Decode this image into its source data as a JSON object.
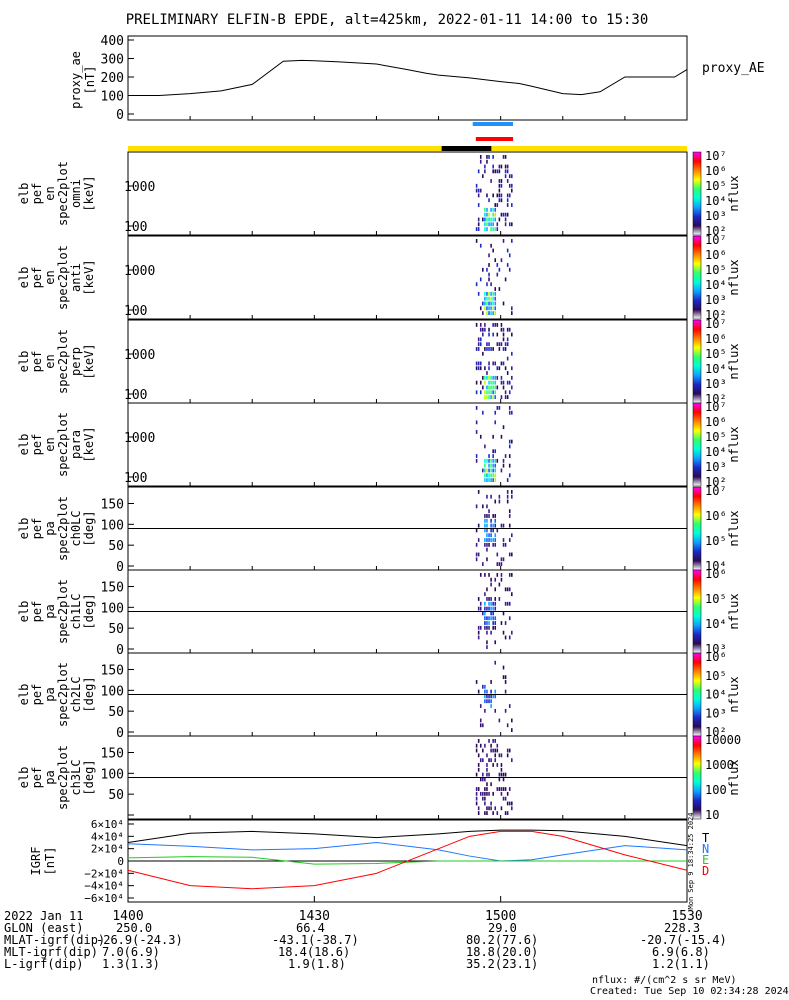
{
  "title": "PRELIMINARY ELFIN-B EPDE, alt=425km, 2022-01-11 14:00 to 15:30",
  "colors": {
    "north_blue": "#1f77ff",
    "east_green": "#22cc22",
    "down_red": "#ff0000",
    "bar_yellow": "#ffe000",
    "bar_black": "#000000",
    "marker_blue": "#1e90ff",
    "marker_red": "#ff0000"
  },
  "chart_data": [
    {
      "type": "line",
      "id": "proxy_ae",
      "ylabel": [
        "proxy_ae",
        "[nT]"
      ],
      "legend": "proxy_AE",
      "ylim": [
        0,
        400
      ],
      "yticks": [
        "400",
        "300",
        "200",
        "100",
        "0"
      ],
      "x_minutes": [
        0,
        5,
        10,
        15,
        20,
        25,
        28,
        30,
        34,
        40,
        45,
        48,
        50,
        55,
        60,
        63,
        65,
        70,
        73,
        76,
        80,
        85,
        88,
        90
      ],
      "values": [
        100,
        100,
        110,
        125,
        160,
        285,
        290,
        288,
        282,
        270,
        240,
        220,
        210,
        195,
        175,
        165,
        150,
        110,
        105,
        120,
        200,
        200,
        200,
        240
      ]
    },
    {
      "type": "heatmap",
      "id": "spec_omni",
      "ylabel": [
        "elb",
        "pef",
        "en",
        "spec2plot",
        "omni",
        "[keV]"
      ],
      "yticks": [
        "1000",
        "100"
      ],
      "ylog": true,
      "zlabel": "nflux",
      "zticks": [
        "10⁷",
        "10⁶",
        "10⁵",
        "10⁴",
        "10³",
        "10²"
      ],
      "active_window_minutes": [
        56,
        62
      ]
    },
    {
      "type": "heatmap",
      "id": "spec_anti",
      "ylabel": [
        "elb",
        "pef",
        "en",
        "spec2plot",
        "anti",
        "[keV]"
      ],
      "yticks": [
        "1000",
        "100"
      ],
      "ylog": true,
      "zlabel": "nflux",
      "zticks": [
        "10⁷",
        "10⁶",
        "10⁵",
        "10⁴",
        "10³",
        "10²"
      ],
      "active_window_minutes": [
        56,
        62
      ]
    },
    {
      "type": "heatmap",
      "id": "spec_perp",
      "ylabel": [
        "elb",
        "pef",
        "en",
        "spec2plot",
        "perp",
        "[keV]"
      ],
      "yticks": [
        "1000",
        "100"
      ],
      "ylog": true,
      "zlabel": "nflux",
      "zticks": [
        "10⁷",
        "10⁶",
        "10⁵",
        "10⁴",
        "10³",
        "10²"
      ],
      "active_window_minutes": [
        56,
        62
      ]
    },
    {
      "type": "heatmap",
      "id": "spec_para",
      "ylabel": [
        "elb",
        "pef",
        "en",
        "spec2plot",
        "para",
        "[keV]"
      ],
      "yticks": [
        "1000",
        "100"
      ],
      "ylog": true,
      "zlabel": "nflux",
      "zticks": [
        "10⁷",
        "10⁶",
        "10⁵",
        "10⁴",
        "10³",
        "10²"
      ],
      "active_window_minutes": [
        56,
        62
      ]
    },
    {
      "type": "heatmap",
      "id": "pa_ch0",
      "ylabel": [
        "elb",
        "pef",
        "pa",
        "spec2plot",
        "ch0LC",
        "[deg]"
      ],
      "yticks": [
        "150",
        "100",
        "50",
        "0"
      ],
      "ylim": [
        0,
        180
      ],
      "zlabel": "nflux",
      "zticks": [
        "10⁷",
        "10⁶",
        "10⁵",
        "10⁴"
      ],
      "active_window_minutes": [
        56,
        62
      ]
    },
    {
      "type": "heatmap",
      "id": "pa_ch1",
      "ylabel": [
        "elb",
        "pef",
        "pa",
        "spec2plot",
        "ch1LC",
        "[deg]"
      ],
      "yticks": [
        "150",
        "100",
        "50",
        "0"
      ],
      "ylim": [
        0,
        180
      ],
      "zlabel": "nflux",
      "zticks": [
        "10⁶",
        "10⁵",
        "10⁴",
        "10³"
      ],
      "active_window_minutes": [
        56,
        62
      ]
    },
    {
      "type": "heatmap",
      "id": "pa_ch2",
      "ylabel": [
        "elb",
        "pef",
        "pa",
        "spec2plot",
        "ch2LC",
        "[deg]"
      ],
      "yticks": [
        "150",
        "100",
        "50",
        "0"
      ],
      "ylim": [
        0,
        180
      ],
      "zlabel": "nflux",
      "zticks": [
        "10⁶",
        "10⁵",
        "10⁴",
        "10³",
        "10²"
      ],
      "active_window_minutes": [
        56,
        62
      ]
    },
    {
      "type": "heatmap",
      "id": "pa_ch3",
      "ylabel": [
        "elb",
        "pef",
        "pa",
        "spec2plot",
        "ch3LC",
        "[deg]"
      ],
      "yticks": [
        "150",
        "100",
        "50"
      ],
      "ylim": [
        0,
        180
      ],
      "zlabel": "nflux",
      "zticks": [
        "10000",
        "1000",
        "100",
        "10"
      ],
      "active_window_minutes": [
        56,
        62
      ]
    },
    {
      "type": "line",
      "id": "igrf",
      "ylabel": [
        "IGRF",
        "[nT]"
      ],
      "ylim": [
        -60000,
        60000
      ],
      "yticks": [
        "6×10⁴",
        "4×10⁴",
        "2×10⁴",
        "0",
        "−2×10⁴",
        "−4×10⁴",
        "−6×10⁴"
      ],
      "legend": [
        "T",
        "N",
        "E",
        "D"
      ],
      "side_note": "Mon Sep 9 18:34:25 2024",
      "x_minutes": [
        0,
        10,
        20,
        30,
        40,
        50,
        55,
        60,
        65,
        70,
        80,
        90
      ],
      "series": [
        {
          "name": "T",
          "values": [
            30000,
            45000,
            48000,
            44000,
            38000,
            44000,
            48000,
            50000,
            50000,
            49000,
            40000,
            25000
          ]
        },
        {
          "name": "N",
          "values": [
            28000,
            24000,
            18000,
            20000,
            30000,
            18000,
            8000,
            0,
            2000,
            10000,
            25000,
            18000
          ]
        },
        {
          "name": "E",
          "values": [
            5000,
            7000,
            6000,
            -5000,
            -4000,
            0,
            0,
            0,
            0,
            0,
            0,
            0
          ]
        },
        {
          "name": "D",
          "values": [
            -15000,
            -40000,
            -45000,
            -40000,
            -20000,
            20000,
            40000,
            48000,
            48000,
            40000,
            10000,
            -15000
          ]
        }
      ]
    }
  ],
  "time_axis": {
    "date_label": "2022 Jan 11",
    "ticks": [
      "1400",
      "1430",
      "1500",
      "1530"
    ]
  },
  "ephemeris": [
    {
      "label": "GLON (east)",
      "values": [
        "250.0",
        "66.4",
        "29.0",
        "228.3"
      ]
    },
    {
      "label": "MLAT-igrf(dip)",
      "values": [
        "-26.9(-24.3)",
        "-43.1(-38.7)",
        "80.2(77.6)",
        "-20.7(-15.4)"
      ]
    },
    {
      "label": "MLT-igrf(dip)",
      "values": [
        "7.0(6.9)",
        "18.4(18.6)",
        "18.8(20.0)",
        "6.9(6.8)"
      ]
    },
    {
      "label": "L-igrf(dip)",
      "values": [
        "1.3(1.3)",
        "1.9(1.8)",
        "35.2(23.1)",
        "1.2(1.1)"
      ]
    }
  ],
  "footer": {
    "units_note": "nflux: #/(cm^2 s sr MeV)",
    "created": "Created: Tue Sep 10 02:34:28 2024"
  }
}
